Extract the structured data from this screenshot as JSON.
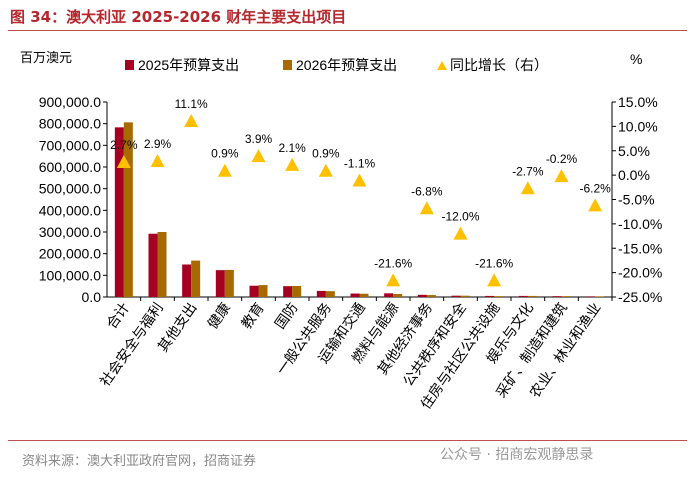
{
  "title": "图 34：澳大利亚 2025-2026 财年主要支出项目",
  "source": "资料来源：澳大利亚政府官网，招商证券",
  "watermark": "公众号 · 招商宏观静思录",
  "chart_data": {
    "type": "bar",
    "ylabel_left": "百万澳元",
    "ylabel_right": "%",
    "categories": [
      "合计",
      "社会安全与福利",
      "其他支出",
      "健康",
      "教育",
      "国防",
      "一般公共服务",
      "运输和交通",
      "燃料与能源",
      "其他经济事务",
      "公共秩序和安全",
      "住房与社区公共设施",
      "娱乐与文化",
      "采矿、制造和建筑",
      "农业、林业和渔业"
    ],
    "series": [
      {
        "name": "2025年预算支出",
        "axis": "left",
        "color": "#A50021",
        "values": [
          783000,
          292000,
          150000,
          124000,
          52000,
          50000,
          28000,
          16000,
          17000,
          10000,
          6000,
          5000,
          5000,
          4000,
          3000
        ]
      },
      {
        "name": "2026年预算支出",
        "axis": "left",
        "color": "#A66A00",
        "values": [
          806000,
          300000,
          168000,
          125000,
          55000,
          51000,
          27000,
          15000,
          14000,
          9000,
          6000,
          4000,
          5000,
          4000,
          3000
        ]
      },
      {
        "name": "同比增长（右）",
        "axis": "right",
        "type": "scatter",
        "marker": "triangle",
        "color": "#FFC000",
        "values": [
          2.7,
          2.9,
          11.1,
          0.9,
          3.9,
          2.1,
          0.9,
          -1.1,
          -21.6,
          -6.8,
          -12.0,
          -21.6,
          -2.7,
          -0.2,
          -6.2
        ],
        "labels": [
          "2.7%",
          "2.9%",
          "11.1%",
          "0.9%",
          "3.9%",
          "2.1%",
          "0.9%",
          "-1.1%",
          "-21.6%",
          "-6.8%",
          "-12.0%",
          "-21.6%",
          "-2.7%",
          "-0.2%",
          "-6.2%"
        ]
      }
    ],
    "ylim_left": [
      0,
      900000
    ],
    "yticks_left": [
      "0.0",
      "100,000.0",
      "200,000.0",
      "300,000.0",
      "400,000.0",
      "500,000.0",
      "600,000.0",
      "700,000.0",
      "800,000.0",
      "900,000.0"
    ],
    "ylim_right": [
      -25,
      15
    ],
    "yticks_right": [
      "-25.0%",
      "-20.0%",
      "-15.0%",
      "-10.0%",
      "-5.0%",
      "0.0%",
      "5.0%",
      "10.0%",
      "15.0%"
    ],
    "legend": "top",
    "grid": false
  }
}
